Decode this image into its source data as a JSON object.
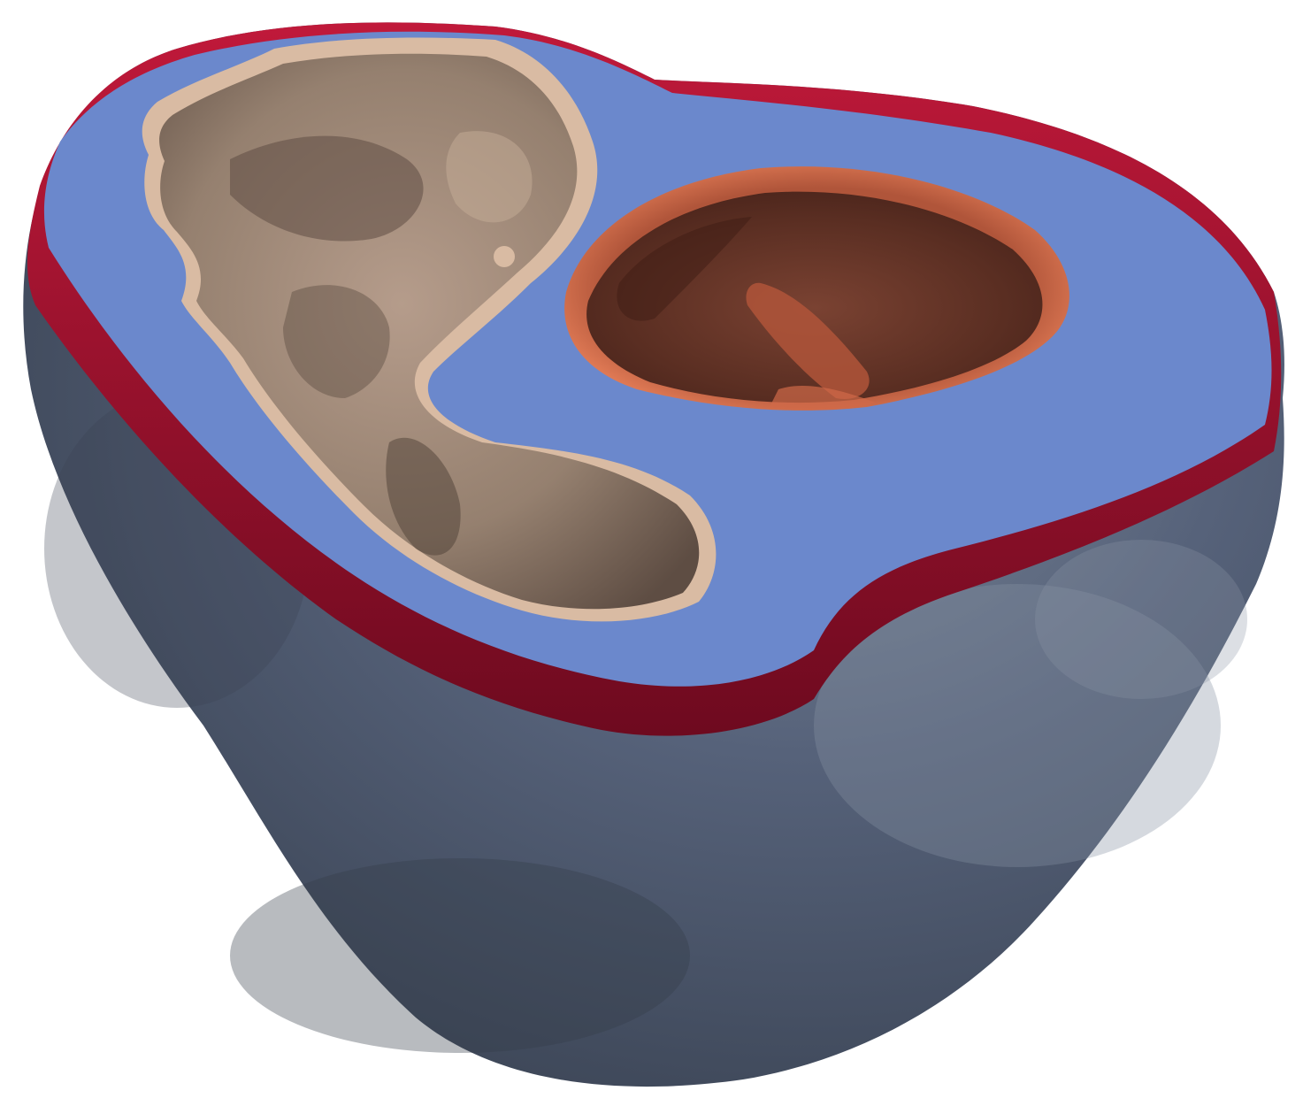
{
  "scene": {
    "subject": "cardiac-biventricular-mesh",
    "background_color": "#ffffff",
    "colors": {
      "epicardium": "#4b5669",
      "epicardium_highlight": "#7b8797",
      "epicardium_shadow": "#3a4353",
      "basal_plane": "#6b88cc",
      "epicardial_rim": "#a2122f",
      "epicardial_rim_dark": "#6e0a1f",
      "rv_endocardium": "#a89080",
      "rv_endocardium_light": "#d9bba3",
      "rv_endocardium_dark": "#5e4d43",
      "lv_endocardium_rim": "#d96d4a",
      "lv_endocardium": "#6e3a2c",
      "lv_endocardium_dark": "#4a241b"
    },
    "regions": [
      {
        "name": "epicardial-surface",
        "icon": "mesh-surface"
      },
      {
        "name": "basal-cut-plane",
        "icon": "mesh-plane"
      },
      {
        "name": "epicardial-rim",
        "icon": "mesh-edge"
      },
      {
        "name": "right-ventricle-cavity",
        "icon": "mesh-cavity"
      },
      {
        "name": "left-ventricle-cavity",
        "icon": "mesh-cavity"
      }
    ]
  }
}
